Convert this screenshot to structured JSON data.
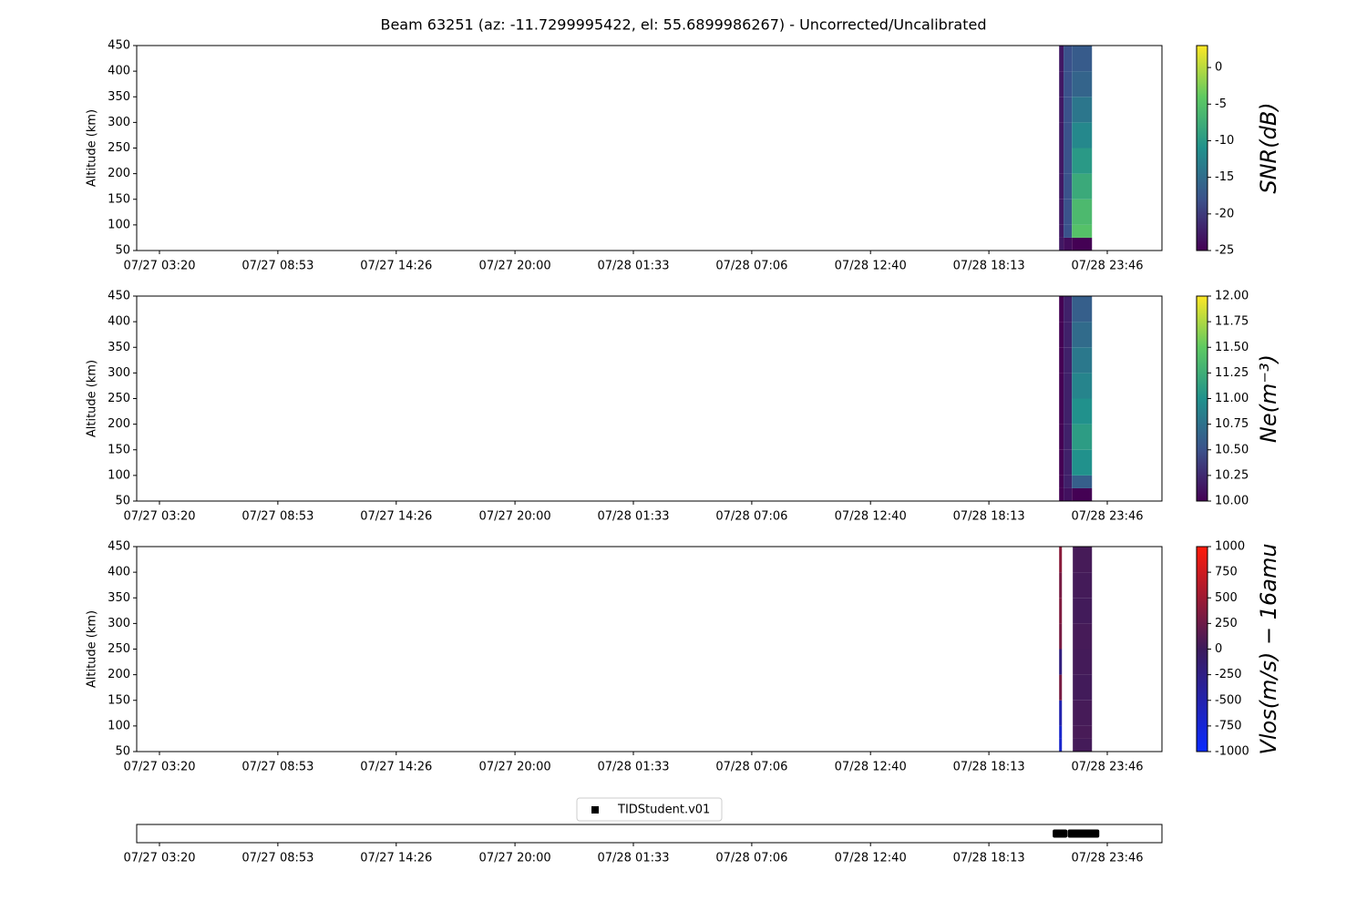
{
  "title": "Beam 63251 (az: -11.7299995422, el: 55.6899986267) - Uncorrected/Uncalibrated",
  "chart_data": [
    {
      "type": "heatmap",
      "ylabel": "Altitude (km)",
      "colorbar_label": "SNR(dB)",
      "colormap": [
        "#440154",
        "#3b528b",
        "#21918c",
        "#5ec962",
        "#fde725"
      ],
      "clim": [
        -25,
        3
      ],
      "cticks": [
        -25,
        -20,
        -15,
        -10,
        -5,
        0
      ],
      "xlim": [
        2.266,
        50.33
      ],
      "xticks": [
        {
          "value": 3.333,
          "label": "07/27 03:20"
        },
        {
          "value": 8.883,
          "label": "07/27 08:53"
        },
        {
          "value": 14.433,
          "label": "07/27 14:26"
        },
        {
          "value": 20.0,
          "label": "07/27 20:00"
        },
        {
          "value": 25.55,
          "label": "07/28 01:33"
        },
        {
          "value": 31.1,
          "label": "07/28 07:06"
        },
        {
          "value": 36.667,
          "label": "07/28 12:40"
        },
        {
          "value": 42.217,
          "label": "07/28 18:13"
        },
        {
          "value": 47.767,
          "label": "07/28 23:46"
        }
      ],
      "ylim": [
        50,
        450
      ],
      "yticks": [
        50,
        100,
        150,
        200,
        250,
        300,
        350,
        400,
        450
      ],
      "x_edges": [
        45.51,
        45.72,
        46.11,
        47.05
      ],
      "y_edges": [
        50,
        75,
        100,
        150,
        200,
        250,
        300,
        350,
        400,
        450
      ],
      "z": [
        [
          -23,
          -24,
          -25
        ],
        [
          -23,
          -18,
          -5
        ],
        [
          -23,
          -18,
          -6
        ],
        [
          -23,
          -18,
          -8
        ],
        [
          -23,
          -18,
          -10
        ],
        [
          -23,
          -18,
          -12
        ],
        [
          -23,
          -18,
          -14
        ],
        [
          -23,
          -18,
          -16
        ],
        [
          -23,
          -18,
          -17
        ]
      ]
    },
    {
      "type": "heatmap",
      "ylabel": "Altitude (km)",
      "colorbar_label": "Ne(m⁻³)",
      "colormap": [
        "#440154",
        "#3b528b",
        "#21918c",
        "#5ec962",
        "#fde725"
      ],
      "clim": [
        10,
        12
      ],
      "cticks": [
        {
          "value": 10,
          "label": "10.00"
        },
        {
          "value": 10.25,
          "label": "10.25"
        },
        {
          "value": 10.5,
          "label": "10.50"
        },
        {
          "value": 10.75,
          "label": "10.75"
        },
        {
          "value": 11,
          "label": "11.00"
        },
        {
          "value": 11.25,
          "label": "11.25"
        },
        {
          "value": 11.5,
          "label": "11.50"
        },
        {
          "value": 11.75,
          "label": "11.75"
        },
        {
          "value": 12,
          "label": "12.00"
        }
      ],
      "xlim": [
        2.266,
        50.33
      ],
      "xticks": [
        {
          "value": 3.333,
          "label": "07/27 03:20"
        },
        {
          "value": 8.883,
          "label": "07/27 08:53"
        },
        {
          "value": 14.433,
          "label": "07/27 14:26"
        },
        {
          "value": 20.0,
          "label": "07/27 20:00"
        },
        {
          "value": 25.55,
          "label": "07/28 01:33"
        },
        {
          "value": 31.1,
          "label": "07/28 07:06"
        },
        {
          "value": 36.667,
          "label": "07/28 12:40"
        },
        {
          "value": 42.217,
          "label": "07/28 18:13"
        },
        {
          "value": 47.767,
          "label": "07/28 23:46"
        }
      ],
      "ylim": [
        50,
        450
      ],
      "yticks": [
        50,
        100,
        150,
        200,
        250,
        300,
        350,
        400,
        450
      ],
      "x_edges": [
        45.51,
        45.72,
        46.11,
        47.05
      ],
      "y_edges": [
        50,
        75,
        100,
        150,
        200,
        250,
        300,
        350,
        400,
        450
      ],
      "z": [
        [
          10,
          10.1,
          10
        ],
        [
          10,
          10.2,
          10.6
        ],
        [
          10,
          10.2,
          11.0
        ],
        [
          10,
          10.2,
          11.1
        ],
        [
          10,
          10.2,
          11.0
        ],
        [
          10,
          10.2,
          10.9
        ],
        [
          10,
          10.2,
          10.8
        ],
        [
          10,
          10.2,
          10.7
        ],
        [
          10,
          10.2,
          10.6
        ]
      ]
    },
    {
      "type": "heatmap",
      "ylabel": "Altitude (km)",
      "colorbar_label": "Vlos(m/s) − 16amu",
      "colormap": [
        "#0a2aff",
        "#3c1b5c",
        "#ff1a0a"
      ],
      "clim": [
        -1000,
        1000
      ],
      "cticks": [
        -1000,
        -750,
        -500,
        -250,
        0,
        250,
        500,
        750,
        1000
      ],
      "xlim": [
        2.266,
        50.33
      ],
      "xticks": [
        {
          "value": 3.333,
          "label": "07/27 03:20"
        },
        {
          "value": 8.883,
          "label": "07/27 08:53"
        },
        {
          "value": 14.433,
          "label": "07/27 14:26"
        },
        {
          "value": 20.0,
          "label": "07/27 20:00"
        },
        {
          "value": 25.55,
          "label": "07/28 01:33"
        },
        {
          "value": 31.1,
          "label": "07/28 07:06"
        },
        {
          "value": 36.667,
          "label": "07/28 12:40"
        },
        {
          "value": 42.217,
          "label": "07/28 18:13"
        },
        {
          "value": 47.767,
          "label": "07/28 23:46"
        }
      ],
      "ylim": [
        50,
        450
      ],
      "yticks": [
        50,
        100,
        150,
        200,
        250,
        300,
        350,
        400,
        450
      ],
      "x_edges": [
        45.51,
        45.64,
        46.15,
        47.05
      ],
      "y_edges": [
        50,
        75,
        100,
        150,
        200,
        250,
        300,
        350,
        400,
        450
      ],
      "z": [
        [
          -700,
          null,
          40
        ],
        [
          -700,
          null,
          60
        ],
        [
          -500,
          null,
          50
        ],
        [
          300,
          null,
          30
        ],
        [
          -200,
          null,
          40
        ],
        [
          300,
          null,
          50
        ],
        [
          350,
          null,
          30
        ],
        [
          300,
          null,
          40
        ],
        [
          400,
          null,
          50
        ]
      ]
    },
    {
      "type": "scatter",
      "legend": "upper center",
      "xlim": [
        2.266,
        50.33
      ],
      "xticks": [
        {
          "value": 3.333,
          "label": "07/27 03:20"
        },
        {
          "value": 8.883,
          "label": "07/27 08:53"
        },
        {
          "value": 14.433,
          "label": "07/27 14:26"
        },
        {
          "value": 20.0,
          "label": "07/27 20:00"
        },
        {
          "value": 25.55,
          "label": "07/28 01:33"
        },
        {
          "value": 31.1,
          "label": "07/28 07:06"
        },
        {
          "value": 36.667,
          "label": "07/28 12:40"
        },
        {
          "value": 42.217,
          "label": "07/28 18:13"
        },
        {
          "value": 47.767,
          "label": "07/28 23:46"
        }
      ],
      "ylim": [
        0,
        2
      ],
      "series": [
        {
          "name": "TIDStudent.v01",
          "color": "#000000",
          "x": [
            45.4,
            45.5,
            45.6,
            45.7,
            46.1,
            46.2,
            46.3,
            46.4,
            46.5,
            46.6,
            46.7,
            46.8,
            46.9,
            47.0,
            47.1,
            47.2
          ],
          "values": [
            1,
            1,
            1,
            1,
            1,
            1,
            1,
            1,
            1,
            1,
            1,
            1,
            1,
            1,
            1,
            1
          ]
        }
      ]
    }
  ]
}
